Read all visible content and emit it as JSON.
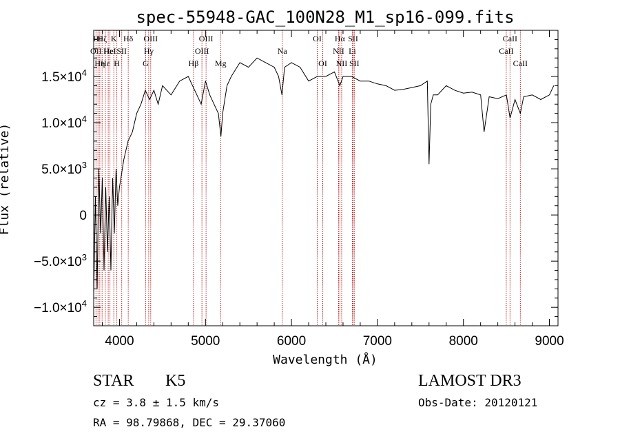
{
  "chart_data": {
    "type": "line",
    "title": "spec-55948-GAC_100N28_M1_sp16-099.fits",
    "xlabel": "Wavelength (Å)",
    "ylabel": "Flux (relative)",
    "xlim": [
      3700,
      9100
    ],
    "ylim": [
      -12000,
      20000
    ],
    "x_ticks": [
      {
        "value": 4000,
        "label": "4000"
      },
      {
        "value": 5000,
        "label": "5000"
      },
      {
        "value": 6000,
        "label": "6000"
      },
      {
        "value": 7000,
        "label": "7000"
      },
      {
        "value": 8000,
        "label": "8000"
      },
      {
        "value": 9000,
        "label": "9000"
      }
    ],
    "y_ticks": [
      {
        "value": -10000,
        "mant": "−1.0×10",
        "exp": "4"
      },
      {
        "value": -5000,
        "mant": "−5.0×10",
        "exp": "3"
      },
      {
        "value": 0,
        "mant": "0",
        "exp": ""
      },
      {
        "value": 5000,
        "mant": "5.0×10",
        "exp": "3"
      },
      {
        "value": 10000,
        "mant": "1.0×10",
        "exp": "4"
      },
      {
        "value": 15000,
        "mant": "1.5×10",
        "exp": "4"
      }
    ],
    "series": [
      {
        "name": "spectrum",
        "x": [
          3700,
          3720,
          3740,
          3760,
          3780,
          3800,
          3820,
          3840,
          3860,
          3880,
          3900,
          3920,
          3940,
          3960,
          3980,
          4000,
          4050,
          4100,
          4150,
          4200,
          4250,
          4300,
          4350,
          4400,
          4450,
          4500,
          4600,
          4700,
          4800,
          4850,
          4900,
          4950,
          5000,
          5050,
          5100,
          5150,
          5180,
          5200,
          5250,
          5300,
          5400,
          5500,
          5600,
          5700,
          5800,
          5850,
          5890,
          5920,
          6000,
          6100,
          6200,
          6300,
          6400,
          6500,
          6563,
          6600,
          6700,
          6800,
          6900,
          7000,
          7100,
          7200,
          7300,
          7400,
          7500,
          7580,
          7600,
          7620,
          7650,
          7700,
          7800,
          7900,
          8000,
          8100,
          8200,
          8240,
          8300,
          8400,
          8500,
          8542,
          8600,
          8662,
          8700,
          8800,
          8900,
          9000,
          9050
        ],
        "y": [
          -9000,
          2000,
          -8000,
          5000,
          -2000,
          4000,
          -6000,
          3000,
          -4000,
          2000,
          -6000,
          4000,
          -2000,
          5000,
          1000,
          3000,
          6000,
          8000,
          9000,
          11000,
          12000,
          13500,
          12500,
          13500,
          12000,
          14000,
          13000,
          14500,
          15000,
          14000,
          13000,
          12000,
          14500,
          13000,
          12000,
          11000,
          8500,
          11000,
          14000,
          15000,
          16500,
          16000,
          17000,
          16500,
          16000,
          15000,
          13000,
          16000,
          16500,
          16000,
          14500,
          15000,
          15000,
          15500,
          14000,
          15000,
          15000,
          14500,
          14500,
          14200,
          14000,
          13500,
          13600,
          13800,
          14000,
          14500,
          5500,
          12000,
          13000,
          13000,
          14000,
          13500,
          13200,
          13300,
          13000,
          9000,
          12800,
          12600,
          13000,
          10500,
          12500,
          11000,
          12800,
          13000,
          12500,
          13000,
          14000
        ]
      }
    ],
    "lines": [
      {
        "x": 3727,
        "label": "OII",
        "row": 1
      },
      {
        "x": 3750,
        "label": "Hθ",
        "row": 0
      },
      {
        "x": 3771,
        "label": "Hη",
        "row": 2
      },
      {
        "x": 3798,
        "label": "Hζ",
        "row": 0
      },
      {
        "x": 3835,
        "label": "Hε",
        "row": 2
      },
      {
        "x": 3869,
        "label": "He",
        "row": 1
      },
      {
        "x": 3889,
        "label": "HeI",
        "row": 1
      },
      {
        "x": 3934,
        "label": "K",
        "row": 0
      },
      {
        "x": 3969,
        "label": "H",
        "row": 2
      },
      {
        "x": 4026,
        "label": "SII",
        "row": 1
      },
      {
        "x": 4102,
        "label": "Hδ",
        "row": 0
      },
      {
        "x": 4304,
        "label": "G",
        "row": 2
      },
      {
        "x": 4340,
        "label": "Hγ",
        "row": 1
      },
      {
        "x": 4363,
        "label": "OIII",
        "row": 0
      },
      {
        "x": 4861,
        "label": "Hβ",
        "row": 2
      },
      {
        "x": 4959,
        "label": "OIII",
        "row": 1
      },
      {
        "x": 5007,
        "label": "OIII",
        "row": 0
      },
      {
        "x": 5176,
        "label": "Mg",
        "row": 2
      },
      {
        "x": 5893,
        "label": "Na",
        "row": 1
      },
      {
        "x": 6300,
        "label": "OI",
        "row": 0
      },
      {
        "x": 6364,
        "label": "OI",
        "row": 2
      },
      {
        "x": 6548,
        "label": "NII",
        "row": 1
      },
      {
        "x": 6563,
        "label": "Hα",
        "row": 0
      },
      {
        "x": 6584,
        "label": "NII",
        "row": 2
      },
      {
        "x": 6708,
        "label": "Li",
        "row": 1
      },
      {
        "x": 6717,
        "label": "SII",
        "row": 0
      },
      {
        "x": 6731,
        "label": "SII",
        "row": 2
      },
      {
        "x": 8498,
        "label": "CaII",
        "row": 1
      },
      {
        "x": 8542,
        "label": "CaII",
        "row": 0
      },
      {
        "x": 8662,
        "label": "CaII",
        "row": 2
      }
    ],
    "line_color": "#b22222"
  },
  "info": {
    "class": "STAR",
    "subclass": "K5",
    "redshift": "cz = 3.8 ± 1.5 km/s",
    "coords": "RA =  98.79868, DEC =  29.37060",
    "survey": "LAMOST DR3",
    "obs_date": "Obs-Date: 20120121"
  }
}
